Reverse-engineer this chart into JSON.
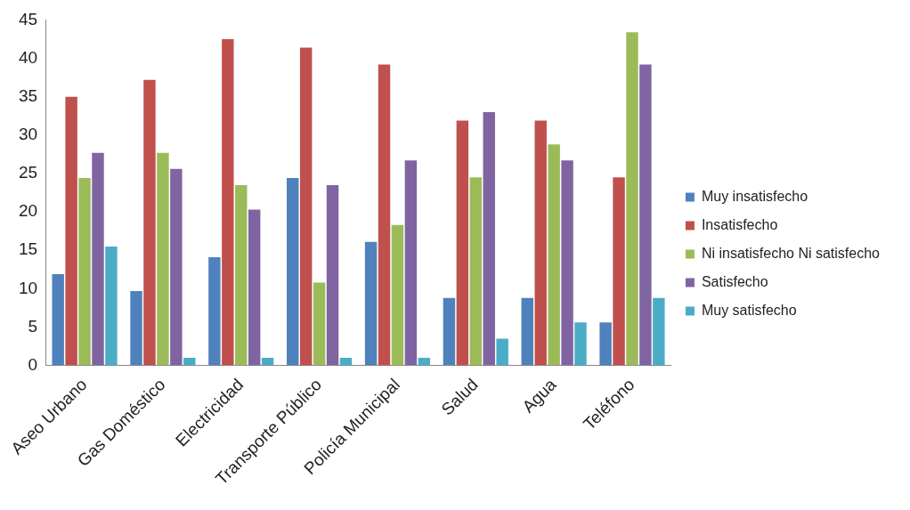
{
  "chart_data": {
    "type": "bar",
    "categories": [
      "Aseo Urbano",
      "Gas Doméstico",
      "Electricidad",
      "Transporte Público",
      "Policía Municipal",
      "Salud",
      "Agua",
      "Teléfono"
    ],
    "series": [
      {
        "name": "Muy insatisfecho",
        "color": "#4f81bd",
        "values": [
          11.9,
          9.7,
          14.1,
          24.4,
          16.1,
          8.8,
          8.8,
          5.6
        ]
      },
      {
        "name": "Insatisfecho",
        "color": "#c0504d",
        "values": [
          35.0,
          37.2,
          42.5,
          41.4,
          39.2,
          31.9,
          31.9,
          24.5
        ]
      },
      {
        "name": "Ni insatisfecho Ni satisfecho",
        "color": "#9bbb59",
        "values": [
          24.4,
          27.7,
          23.5,
          10.8,
          18.3,
          24.5,
          28.8,
          43.4
        ]
      },
      {
        "name": "Satisfecho",
        "color": "#8064a2",
        "values": [
          27.7,
          25.6,
          20.3,
          23.5,
          26.7,
          33.0,
          26.7,
          39.2
        ]
      },
      {
        "name": "Muy satisfecho",
        "color": "#4bacc6",
        "values": [
          15.5,
          1.0,
          1.0,
          1.0,
          1.0,
          3.5,
          5.6,
          8.8
        ]
      }
    ],
    "ylim": [
      0,
      45
    ],
    "yticks": [
      0,
      5,
      10,
      15,
      20,
      25,
      30,
      35,
      40,
      45
    ],
    "grid": false,
    "legend": "right"
  }
}
